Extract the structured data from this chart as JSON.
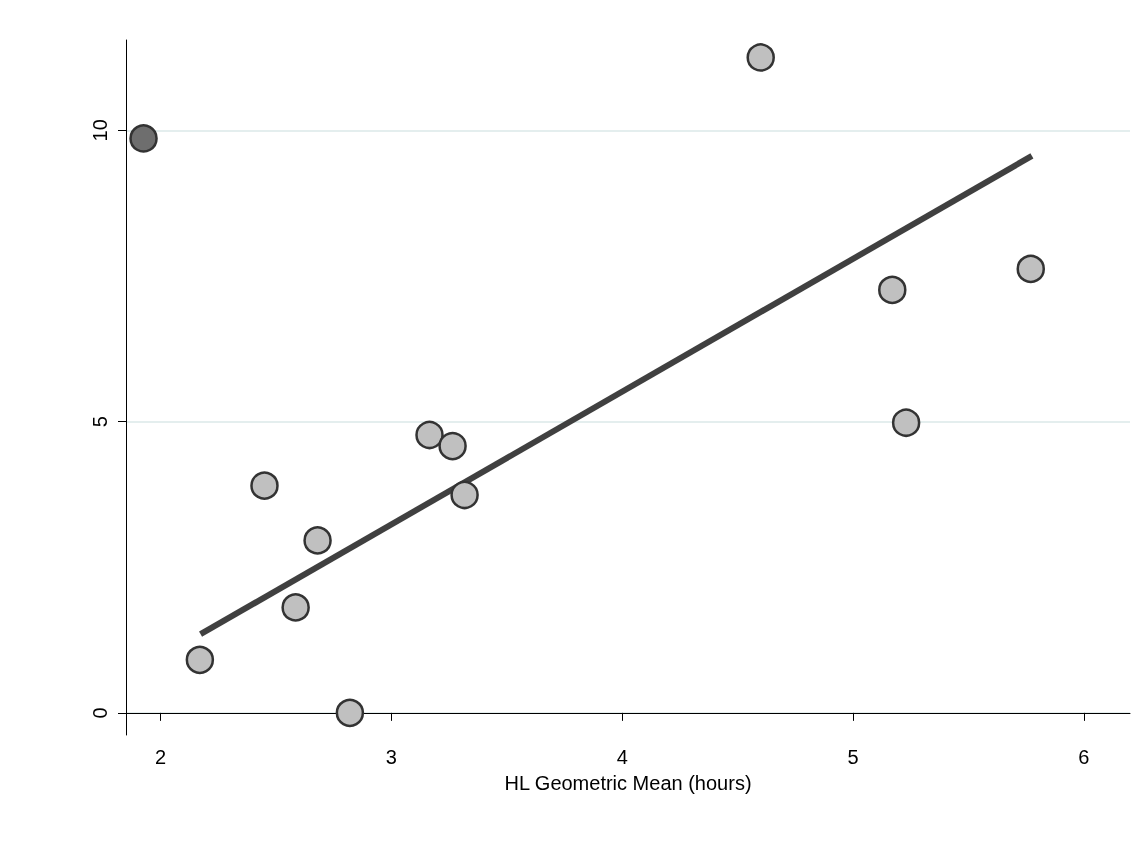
{
  "chart_data": {
    "type": "scatter",
    "xlabel": "HL Geometric Mean (hours)",
    "xlim": [
      1.85,
      6.2
    ],
    "xticks": [
      2,
      3,
      4,
      5,
      6
    ],
    "ylim": [
      -0.38,
      11.55
    ],
    "yticks": [
      0,
      5,
      10
    ],
    "grid": "y",
    "series": [
      {
        "marker": "circle",
        "x": [
          1.926,
          4.6,
          5.77,
          5.17,
          5.23,
          3.165,
          3.265,
          3.317,
          2.45,
          2.68,
          2.585,
          2.17,
          2.82
        ],
        "values": [
          9.86,
          11.25,
          7.62,
          7.26,
          4.98,
          4.77,
          4.58,
          3.74,
          3.9,
          2.96,
          1.81,
          0.91,
          0.0
        ],
        "colors": [
          "#6e6e6e",
          "#c0c0c0",
          "#c0c0c0",
          "#c0c0c0",
          "#c0c0c0",
          "#c0c0c0",
          "#c0c0c0",
          "#c0c0c0",
          "#c0c0c0",
          "#c0c0c0",
          "#c0c0c0",
          "#c0c0c0",
          "#c0c0c0"
        ]
      },
      {
        "type": "line",
        "marker": "none",
        "x": [
          2.173,
          5.775
        ],
        "values": [
          1.35,
          9.56
        ],
        "color": "#404040",
        "line_style": "solid"
      }
    ]
  }
}
